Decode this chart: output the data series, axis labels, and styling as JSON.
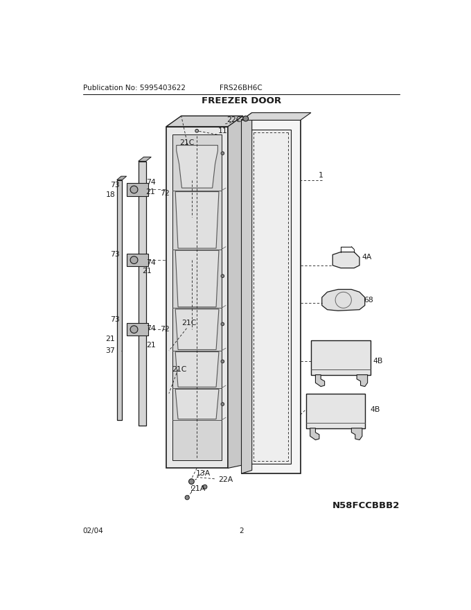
{
  "title": "FREEZER DOOR",
  "pub_no": "Publication No: 5995403622",
  "model": "FRS26BH6C",
  "date": "02/04",
  "page": "2",
  "part_id": "N58FCCBBB2",
  "bg_color": "#ffffff"
}
